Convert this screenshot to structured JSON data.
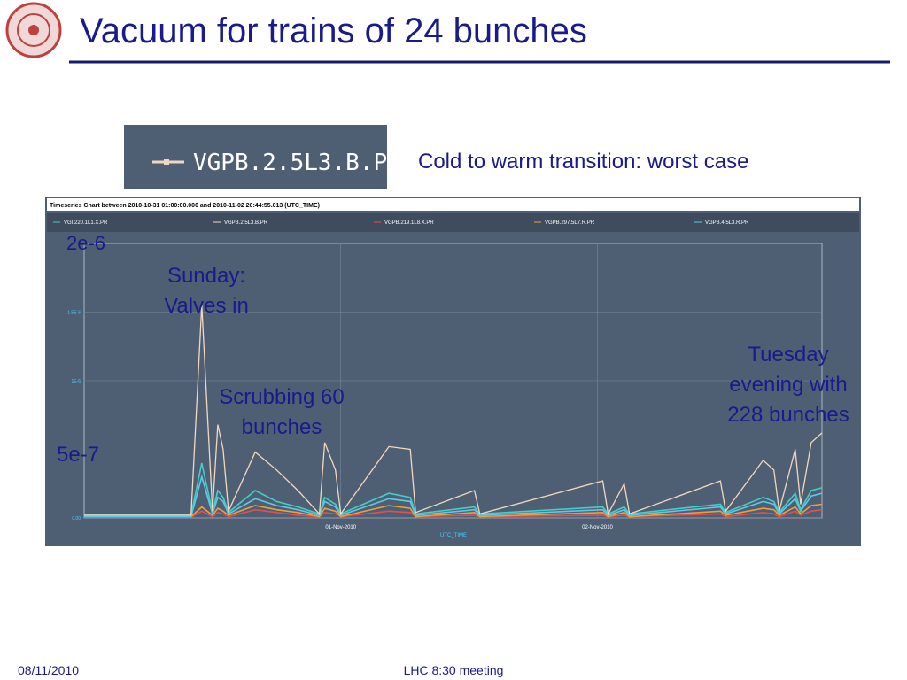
{
  "slide": {
    "title": "Vacuum for trains of 24 bunches",
    "subtitle": "Cold to warm transition: worst case",
    "footer_date": "08/11/2010",
    "footer_text": "LHC 8:30 meeting"
  },
  "chart_data": {
    "type": "line",
    "title": "Timeseries Chart between 2010-10-31 01:00:00.000 and 2010-11-02 20:44:55.013 (UTC_TIME)",
    "x_label": "UTC_TIME",
    "x": [
      "2010-10-31 00:00",
      "2010-10-31 10:00",
      "2010-10-31 11:00",
      "2010-10-31 12:00",
      "2010-10-31 12:30",
      "2010-10-31 13:00",
      "2010-10-31 13:30",
      "2010-10-31 16:00",
      "2010-10-31 18:00",
      "2010-10-31 20:00",
      "2010-10-31 22:00",
      "2010-10-31 22:30",
      "2010-10-31 23:30",
      "2010-11-01 00:00",
      "2010-11-01 04:30",
      "2010-11-01 06:30",
      "2010-11-01 07:00",
      "2010-11-01 12:30",
      "2010-11-01 13:00",
      "2010-11-02 00:30",
      "2010-11-02 01:00",
      "2010-11-02 02:30",
      "2010-11-02 03:00",
      "2010-11-02 11:30",
      "2010-11-02 12:00",
      "2010-11-02 15:30",
      "2010-11-02 16:30",
      "2010-11-02 17:00",
      "2010-11-02 18:30",
      "2010-11-02 19:00",
      "2010-11-02 20:00",
      "2010-11-02 21:00"
    ],
    "series": [
      {
        "name": "VGI.220.1L1.X.PR",
        "color": "#40d0c8",
        "values": [
          2e-08,
          2e-08,
          4e-07,
          4e-08,
          2e-07,
          1.5e-07,
          4e-08,
          2e-07,
          1.2e-07,
          8e-08,
          3e-08,
          1.5e-07,
          1e-07,
          3e-08,
          1.8e-07,
          1.5e-07,
          3e-08,
          8e-08,
          3e-08,
          8e-08,
          3e-08,
          8e-08,
          3e-08,
          1e-07,
          4e-08,
          1.5e-07,
          1.2e-07,
          4e-08,
          1.8e-07,
          6e-08,
          2e-07,
          2.2e-07
        ]
      },
      {
        "name": "VGPB.2.5L3.B.PR",
        "color": "#f0d8c0",
        "values": [
          2e-08,
          2e-08,
          1.55e-06,
          5e-08,
          6.8e-07,
          5e-07,
          5e-08,
          4.8e-07,
          3.5e-07,
          2e-07,
          3e-08,
          5.5e-07,
          3.5e-07,
          3e-08,
          5.2e-07,
          5e-07,
          4e-08,
          2e-07,
          3e-08,
          2.7e-07,
          3e-08,
          2.5e-07,
          3e-08,
          2.7e-07,
          5e-08,
          4.2e-07,
          3.5e-07,
          5e-08,
          5e-07,
          1e-07,
          5.5e-07,
          6.2e-07
        ]
      },
      {
        "name": "VGPB.219.1L8.X.PR",
        "color": "#e05050",
        "values": [
          5e-09,
          5e-09,
          5e-08,
          1e-08,
          4e-08,
          3e-08,
          1e-08,
          6e-08,
          4e-08,
          2e-08,
          1e-08,
          4e-08,
          3e-08,
          1e-08,
          5e-08,
          4e-08,
          1e-08,
          2e-08,
          1e-08,
          2e-08,
          1e-08,
          2e-08,
          1e-08,
          3e-08,
          1e-08,
          4e-08,
          3e-08,
          1e-08,
          5e-08,
          2e-08,
          5e-08,
          6e-08
        ]
      },
      {
        "name": "VGPB.297.5L7.R.PR",
        "color": "#e8a040",
        "values": [
          1e-08,
          1e-08,
          8e-08,
          2e-08,
          7e-08,
          5e-08,
          2e-08,
          9e-08,
          6e-08,
          4e-08,
          1e-08,
          7e-08,
          5e-08,
          1e-08,
          9e-08,
          7e-08,
          1e-08,
          4e-08,
          1e-08,
          4e-08,
          1e-08,
          4e-08,
          1e-08,
          5e-08,
          2e-08,
          7e-08,
          6e-08,
          2e-08,
          8e-08,
          3e-08,
          9e-08,
          1e-07
        ]
      },
      {
        "name": "VGPB.4.5L3.R.PR",
        "color": "#60c8e8",
        "values": [
          1e-08,
          1e-08,
          3e-07,
          3e-08,
          1.5e-07,
          1.2e-07,
          3e-08,
          1.4e-07,
          9e-08,
          6e-08,
          2e-08,
          1.2e-07,
          8e-08,
          2e-08,
          1.4e-07,
          1.2e-07,
          2e-08,
          6e-08,
          2e-08,
          6e-08,
          2e-08,
          6e-08,
          2e-08,
          8e-08,
          3e-08,
          1.2e-07,
          1e-07,
          3e-08,
          1.4e-07,
          5e-08,
          1.6e-07,
          1.8e-07
        ]
      }
    ],
    "xlim": [
      "2010-10-31 00:00",
      "2010-11-02 21:00"
    ],
    "xticks": [
      {
        "value": "2010-11-01 00:00",
        "label": "01-Nov-2010"
      },
      {
        "value": "2010-11-02 00:00",
        "label": "02-Nov-2010"
      }
    ],
    "ylim": [
      0,
      2e-06
    ],
    "yticks": [
      {
        "value": 0,
        "label": "0.00"
      },
      {
        "value": 1e-06,
        "label": "1E-6"
      },
      {
        "value": 1.5e-06,
        "label": "1.5E-6"
      }
    ],
    "grid": true,
    "annotations": [
      {
        "lines": [
          "2e-6"
        ]
      },
      {
        "lines": [
          "Sunday:",
          "Valves in"
        ]
      },
      {
        "lines": [
          "Scrubbing 60",
          "bunches"
        ]
      },
      {
        "lines": [
          "Tuesday",
          "evening with",
          "228 bunches"
        ]
      },
      {
        "lines": [
          "5e-7"
        ]
      }
    ]
  }
}
